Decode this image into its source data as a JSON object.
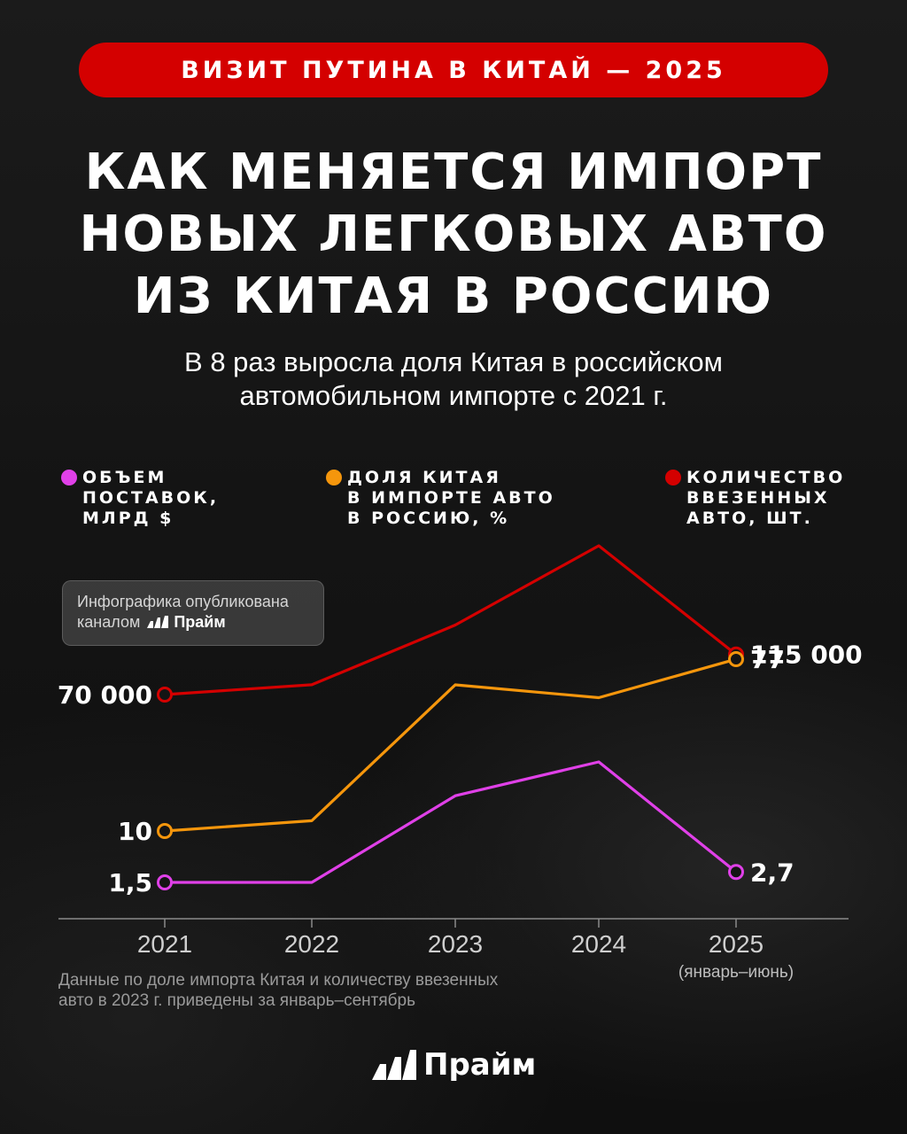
{
  "banner": {
    "text": "ВИЗИТ ПУТИНА В КИТАЙ — 2025"
  },
  "title": {
    "lines": [
      "КАК МЕНЯЕТСЯ ИМПОРТ",
      "НОВЫХ ЛЕГКОВЫХ АВТО",
      "ИЗ КИТАЯ В РОССИЮ"
    ]
  },
  "subtitle": {
    "lines": [
      "В 8 раз выросла доля Китая в российском",
      "автомобильном импорте с 2021 г."
    ]
  },
  "legend": [
    {
      "lines": [
        "ОБЪЕМ",
        "ПОСТАВОК,",
        "МЛРД $"
      ],
      "color": "#e040e8"
    },
    {
      "lines": [
        "ДОЛЯ КИТАЯ",
        "В ИМПОРТЕ АВТО",
        "В РОССИЮ, %"
      ],
      "color": "#f5960c"
    },
    {
      "lines": [
        "КОЛИЧЕСТВО",
        "ВВЕЗЕННЫХ",
        "АВТО, ШТ."
      ],
      "color": "#d40000"
    }
  ],
  "note": {
    "line1": "Инфографика опубликована",
    "line2_prefix": "каналом",
    "brand": "Прайм"
  },
  "chart_data": {
    "type": "line",
    "categories": [
      "2021",
      "2022",
      "2023",
      "2024",
      "2025"
    ],
    "category_sublabels": [
      "",
      "",
      "",
      "",
      "(январь–июнь)"
    ],
    "series": [
      {
        "name": "КОЛИЧЕСТВО ВВЕЗЕННЫХ АВТО, ШТ.",
        "color": "#d40000",
        "values": [
          70000,
          81000,
          148000,
          237000,
          115000
        ],
        "start_label": "70 000",
        "end_label": "115 000"
      },
      {
        "name": "ДОЛЯ КИТАЯ В ИМПОРТЕ АВТО В РОССИЮ, %",
        "color": "#f5960c",
        "values": [
          10,
          14,
          67,
          62,
          77
        ],
        "start_label": "10",
        "end_label": "77"
      },
      {
        "name": "ОБЪЕМ ПОСТАВОК, МЛРД $",
        "color": "#e040e8",
        "values": [
          1.5,
          1.5,
          11.5,
          15.4,
          2.7
        ],
        "start_label": "1,5",
        "end_label": "2,7"
      }
    ],
    "grid": false,
    "legend_position": "top"
  },
  "footnote": {
    "lines": [
      "Данные по доле импорта Китая и количеству ввезенных",
      "авто в 2023 г. приведены за январь–сентябрь"
    ]
  },
  "footer": {
    "brand": "Прайм"
  }
}
